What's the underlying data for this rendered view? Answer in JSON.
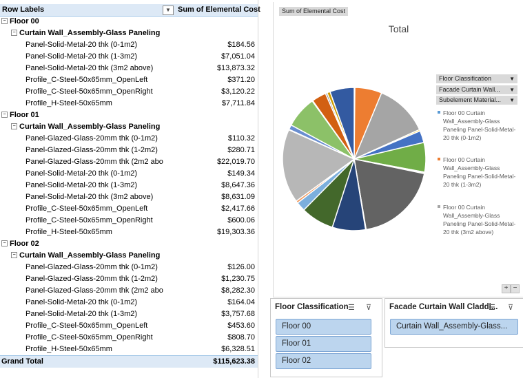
{
  "pivot": {
    "header_row_labels": "Row Labels",
    "header_value": "Sum of Elemental Cost",
    "filter_glyph": "▼",
    "toggle_glyph": "⊟",
    "rows": [
      {
        "level": "floor",
        "label": "Floor 00",
        "value": ""
      },
      {
        "level": "assembly",
        "label": "Curtain Wall_Assembly-Glass Paneling",
        "value": ""
      },
      {
        "level": "item",
        "label": "Panel-Solid-Metal-20 thk (0-1m2)",
        "value": "$184.56"
      },
      {
        "level": "item",
        "label": "Panel-Solid-Metal-20 thk (1-3m2)",
        "value": "$7,051.04"
      },
      {
        "level": "item",
        "label": "Panel-Solid-Metal-20 thk (3m2 above)",
        "value": "$13,873.32"
      },
      {
        "level": "item",
        "label": "Profile_C-Steel-50x65mm_OpenLeft",
        "value": "$371.20"
      },
      {
        "level": "item",
        "label": "Profile_C-Steel-50x65mm_OpenRight",
        "value": "$3,120.22"
      },
      {
        "level": "item",
        "label": "Profile_H-Steel-50x65mm",
        "value": "$7,711.84"
      },
      {
        "level": "floor",
        "label": "Floor 01",
        "value": ""
      },
      {
        "level": "assembly",
        "label": "Curtain Wall_Assembly-Glass Paneling",
        "value": ""
      },
      {
        "level": "item",
        "label": "Panel-Glazed-Glass-20mm thk (0-1m2)",
        "value": "$110.32"
      },
      {
        "level": "item",
        "label": "Panel-Glazed-Glass-20mm thk (1-2m2)",
        "value": "$280.71"
      },
      {
        "level": "item",
        "label": "Panel-Glazed-Glass-20mm thk (2m2 abo",
        "value": "$22,019.70"
      },
      {
        "level": "item",
        "label": "Panel-Solid-Metal-20 thk (0-1m2)",
        "value": "$149.34"
      },
      {
        "level": "item",
        "label": "Panel-Solid-Metal-20 thk (1-3m2)",
        "value": "$8,647.36"
      },
      {
        "level": "item",
        "label": "Panel-Solid-Metal-20 thk (3m2 above)",
        "value": "$8,631.09"
      },
      {
        "level": "item",
        "label": "Profile_C-Steel-50x65mm_OpenLeft",
        "value": "$2,417.66"
      },
      {
        "level": "item",
        "label": "Profile_C-Steel-50x65mm_OpenRight",
        "value": "$600.06"
      },
      {
        "level": "item",
        "label": "Profile_H-Steel-50x65mm",
        "value": "$19,303.36"
      },
      {
        "level": "floor",
        "label": "Floor 02",
        "value": ""
      },
      {
        "level": "assembly",
        "label": "Curtain Wall_Assembly-Glass Paneling",
        "value": ""
      },
      {
        "level": "item",
        "label": "Panel-Glazed-Glass-20mm thk (0-1m2)",
        "value": "$126.00"
      },
      {
        "level": "item",
        "label": "Panel-Glazed-Glass-20mm thk (1-2m2)",
        "value": "$1,230.75"
      },
      {
        "level": "item",
        "label": "Panel-Glazed-Glass-20mm thk (2m2 abo",
        "value": "$8,282.30"
      },
      {
        "level": "item",
        "label": "Panel-Solid-Metal-20 thk (0-1m2)",
        "value": "$164.04"
      },
      {
        "level": "item",
        "label": "Panel-Solid-Metal-20 thk (1-3m2)",
        "value": "$3,757.68"
      },
      {
        "level": "item",
        "label": "Profile_C-Steel-50x65mm_OpenLeft",
        "value": "$453.60"
      },
      {
        "level": "item",
        "label": "Profile_C-Steel-50x65mm_OpenRight",
        "value": "$808.70"
      },
      {
        "level": "item",
        "label": "Profile_H-Steel-50x65mm",
        "value": "$6,328.51"
      }
    ],
    "grand_total_label": "Grand Total",
    "grand_total_value": "$115,623.38"
  },
  "chart": {
    "value_field_button": "Sum of Elemental Cost",
    "title": "Total",
    "axis_field_buttons": [
      "Floor Classification",
      "Facade Curtain Wall...",
      "Subelement Material..."
    ],
    "dropdown_glyph": "▼",
    "legend": [
      {
        "text": "Floor 00 Curtain Wall_Assembly-Glass Paneling Panel-Solid-Metal-20 thk (0-1m2)",
        "color": "#5b9bd5"
      },
      {
        "text": "Floor 00 Curtain Wall_Assembly-Glass Paneling Panel-Solid-Metal-20 thk (1-3m2)",
        "color": "#ed7d31"
      },
      {
        "text": "Floor 00 Curtain Wall_Assembly-Glass Paneling Panel-Solid-Metal-20 thk (3m2 above)",
        "color": "#a5a5a5"
      }
    ],
    "zoom_in": "+",
    "zoom_out": "−"
  },
  "chart_data": {
    "type": "pie",
    "title": "Total",
    "categories": [
      "Floor 00 Panel-Solid-Metal-20 thk (0-1m2)",
      "Floor 00 Panel-Solid-Metal-20 thk (1-3m2)",
      "Floor 00 Panel-Solid-Metal-20 thk (3m2 above)",
      "Floor 00 Profile_C-Steel-50x65mm_OpenLeft",
      "Floor 00 Profile_C-Steel-50x65mm_OpenRight",
      "Floor 00 Profile_H-Steel-50x65mm",
      "Floor 01 Panel-Glazed-Glass-20mm thk (0-1m2)",
      "Floor 01 Panel-Glazed-Glass-20mm thk (1-2m2)",
      "Floor 01 Panel-Glazed-Glass-20mm thk (2m2 abo",
      "Floor 01 Panel-Solid-Metal-20 thk (0-1m2)",
      "Floor 01 Panel-Solid-Metal-20 thk (1-3m2)",
      "Floor 01 Panel-Solid-Metal-20 thk (3m2 above)",
      "Floor 01 Profile_C-Steel-50x65mm_OpenLeft",
      "Floor 01 Profile_C-Steel-50x65mm_OpenRight",
      "Floor 01 Profile_H-Steel-50x65mm",
      "Floor 02 Panel-Glazed-Glass-20mm thk (0-1m2)",
      "Floor 02 Panel-Glazed-Glass-20mm thk (1-2m2)",
      "Floor 02 Panel-Glazed-Glass-20mm thk (2m2 abo",
      "Floor 02 Panel-Solid-Metal-20 thk (0-1m2)",
      "Floor 02 Panel-Solid-Metal-20 thk (1-3m2)",
      "Floor 02 Profile_C-Steel-50x65mm_OpenLeft",
      "Floor 02 Profile_C-Steel-50x65mm_OpenRight",
      "Floor 02 Profile_H-Steel-50x65mm"
    ],
    "values": [
      184.56,
      7051.04,
      13873.32,
      371.2,
      3120.22,
      7711.84,
      110.32,
      280.71,
      22019.7,
      149.34,
      8647.36,
      8631.09,
      2417.66,
      600.06,
      19303.36,
      126.0,
      1230.75,
      8282.3,
      164.04,
      3757.68,
      453.6,
      808.7,
      6328.51
    ],
    "colors": [
      "#5b9bd5",
      "#ed7d31",
      "#a5a5a5",
      "#ffc000",
      "#4472c4",
      "#70ad47",
      "#255e91",
      "#9e480e",
      "#636363",
      "#997300",
      "#264478",
      "#43682b",
      "#7cafdd",
      "#f1975a",
      "#b7b7b7",
      "#ffcd33",
      "#698ed0",
      "#8cc168",
      "#327dc2",
      "#d26012",
      "#848484",
      "#cc9a00",
      "#335aa1"
    ],
    "start_angle_deg": 0
  },
  "slicers": [
    {
      "title": "Floor Classification",
      "items": [
        "Floor 00",
        "Floor 01",
        "Floor 02"
      ]
    },
    {
      "title": "Facade Curtain Wall Claddi...",
      "items": [
        "Curtain Wall_Assembly-Glass..."
      ]
    }
  ],
  "slicer_icons": {
    "multiselect": "☰",
    "clear": "⊽"
  }
}
